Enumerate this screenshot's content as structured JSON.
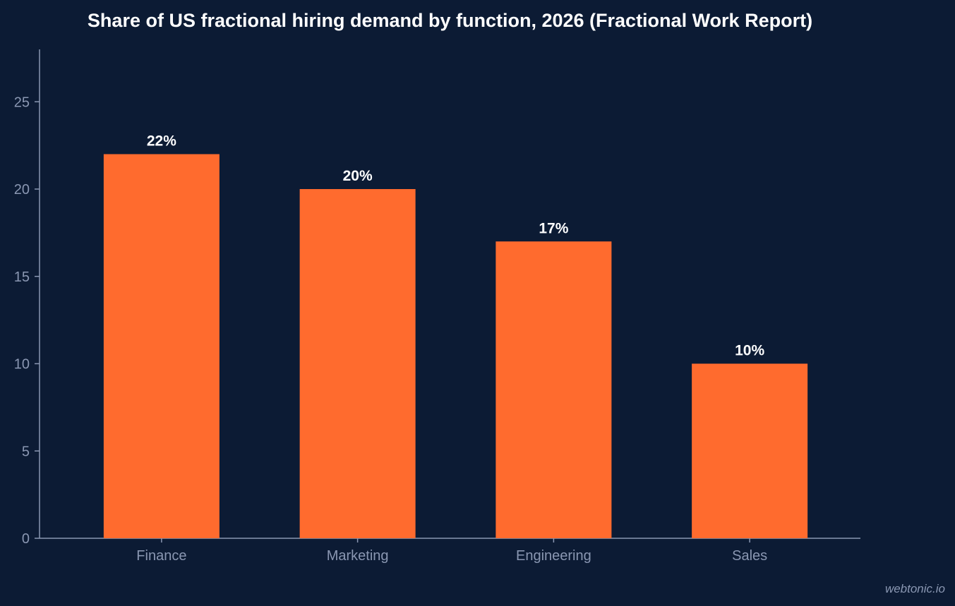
{
  "chart_data": {
    "type": "bar",
    "title": "Share of US fractional hiring demand by function, 2026 (Fractional Work Report)",
    "xlabel": "",
    "ylabel": "",
    "categories": [
      "Finance",
      "Marketing",
      "Engineering",
      "Sales"
    ],
    "values": [
      22,
      20,
      17,
      10
    ],
    "data_labels": [
      "22%",
      "20%",
      "17%",
      "10%"
    ],
    "ylim": [
      0,
      28
    ],
    "yticks": [
      0,
      5,
      10,
      15,
      20,
      25
    ],
    "grid": false,
    "legend": "none",
    "colors": {
      "bar": "#ff6b2e",
      "background": "#0c1b34",
      "axis": "#8a97b2",
      "label": "#ffffff"
    }
  },
  "watermark": "webtonic.io"
}
